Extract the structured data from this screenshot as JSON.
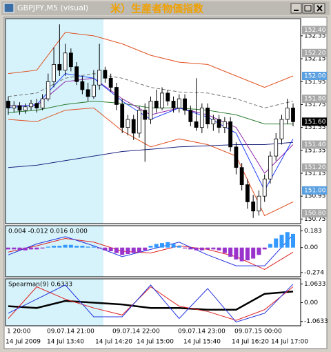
{
  "window": {
    "title": "GBPJPY,M5 (visual)",
    "annotation": "米）生産者物価指数"
  },
  "time_axis": {
    "upper": [
      "1 20:00",
      "09.07.14 21:00",
      "09.07.14 22:00",
      "09.07.14 23:00",
      "09.07.15 00:00"
    ],
    "lower": [
      "14 Jul 2009",
      "14 Jul 13:40",
      "14 Jul 14:20",
      "14 Jul 15:00",
      "14 Jul 15:40",
      "14 Jul 16:20",
      "14 Jul 17:00"
    ]
  },
  "chart_data": [
    {
      "type": "candlestick",
      "ylim": [
        150.71,
        152.5
      ],
      "yticks": [
        152.35,
        152.15,
        151.95,
        151.75,
        151.55,
        151.35,
        151.15,
        150.95,
        150.75
      ],
      "levels": [
        {
          "value": 152.4,
          "label": "152.40",
          "color": "#a8a8a8"
        },
        {
          "value": 152.2,
          "label": "152.20",
          "color": "#a8a8a8"
        },
        {
          "value": 152.0,
          "label": "152.00",
          "color": "#5aa0e0"
        },
        {
          "value": 151.8,
          "label": "151.80",
          "color": "#a8a8a8"
        },
        {
          "value": 151.6,
          "label": "151.60",
          "color": "#000000"
        },
        {
          "value": 151.4,
          "label": "151.40",
          "color": "#a8a8a8"
        },
        {
          "value": 151.2,
          "label": "151.20",
          "color": "#a8a8a8"
        },
        {
          "value": 151.0,
          "label": "151.00",
          "color": "#5aa0e0"
        },
        {
          "value": 150.8,
          "label": "150.80",
          "color": "#a8a8a8"
        }
      ],
      "candles": [
        [
          151.78,
          151.82,
          151.66,
          151.72
        ],
        [
          151.72,
          151.78,
          151.68,
          151.74
        ],
        [
          151.74,
          151.77,
          151.66,
          151.7
        ],
        [
          151.7,
          151.76,
          151.67,
          151.73
        ],
        [
          151.73,
          151.79,
          151.7,
          151.76
        ],
        [
          151.76,
          151.8,
          151.68,
          151.72
        ],
        [
          151.72,
          151.84,
          151.7,
          151.8
        ],
        [
          151.8,
          152.02,
          151.78,
          151.95
        ],
        [
          151.95,
          152.25,
          151.9,
          152.1
        ],
        [
          152.1,
          152.45,
          152.0,
          152.05
        ],
        [
          152.05,
          152.28,
          152.0,
          152.2
        ],
        [
          152.2,
          152.24,
          152.04,
          152.08
        ],
        [
          152.08,
          152.12,
          151.92,
          151.95
        ],
        [
          151.95,
          152.0,
          151.84,
          151.88
        ],
        [
          151.88,
          151.94,
          151.78,
          151.82
        ],
        [
          151.82,
          152.05,
          151.8,
          151.92
        ],
        [
          151.92,
          152.28,
          151.88,
          152.05
        ],
        [
          152.05,
          152.08,
          151.94,
          151.98
        ],
        [
          151.98,
          152.02,
          151.86,
          151.9
        ],
        [
          151.9,
          151.94,
          151.7,
          151.75
        ],
        [
          151.75,
          151.8,
          151.5,
          151.55
        ],
        [
          151.55,
          151.66,
          151.48,
          151.62
        ],
        [
          151.62,
          151.66,
          151.44,
          151.5
        ],
        [
          151.5,
          151.74,
          151.46,
          151.7
        ],
        [
          151.7,
          151.76,
          151.25,
          151.62
        ],
        [
          151.62,
          151.82,
          151.58,
          151.78
        ],
        [
          151.78,
          151.88,
          151.68,
          151.72
        ],
        [
          151.72,
          151.9,
          151.7,
          151.85
        ],
        [
          151.85,
          151.88,
          151.74,
          151.78
        ],
        [
          151.78,
          151.82,
          151.68,
          151.72
        ],
        [
          151.72,
          151.84,
          151.68,
          151.8
        ],
        [
          151.8,
          151.84,
          151.66,
          151.7
        ],
        [
          151.7,
          151.74,
          151.56,
          151.6
        ],
        [
          151.6,
          151.98,
          151.52,
          151.55
        ],
        [
          151.55,
          151.76,
          151.5,
          151.72
        ],
        [
          151.72,
          151.76,
          151.54,
          151.58
        ],
        [
          151.58,
          151.66,
          151.52,
          151.62
        ],
        [
          151.62,
          151.66,
          151.5,
          151.55
        ],
        [
          151.55,
          151.64,
          151.5,
          151.6
        ],
        [
          151.6,
          151.64,
          151.34,
          151.38
        ],
        [
          151.38,
          151.42,
          151.14,
          151.2
        ],
        [
          151.2,
          151.24,
          151.0,
          151.05
        ],
        [
          151.05,
          151.1,
          150.84,
          150.9
        ],
        [
          150.9,
          150.96,
          150.76,
          150.82
        ],
        [
          150.82,
          151.0,
          150.78,
          150.95
        ],
        [
          150.95,
          151.14,
          150.9,
          151.1
        ],
        [
          151.1,
          151.34,
          151.06,
          151.3
        ],
        [
          151.3,
          151.5,
          151.26,
          151.45
        ],
        [
          151.45,
          151.66,
          151.4,
          151.62
        ],
        [
          151.62,
          151.8,
          151.58,
          151.72
        ],
        [
          151.72,
          151.76,
          151.56,
          151.6
        ]
      ],
      "line_x": [
        0,
        5,
        10,
        15,
        20,
        25,
        30,
        35,
        40,
        45,
        50
      ],
      "lines": [
        {
          "color": "#e05020",
          "values": [
            152.02,
            152.05,
            152.38,
            152.35,
            152.28,
            152.18,
            152.12,
            152.1,
            152.0,
            151.9,
            152.0
          ]
        },
        {
          "color": "#e05020",
          "values": [
            151.62,
            151.6,
            151.7,
            151.72,
            151.52,
            151.38,
            151.45,
            151.4,
            151.3,
            150.78,
            150.9
          ]
        },
        {
          "color": "#1a237e",
          "values": [
            151.2,
            151.22,
            151.26,
            151.3,
            151.34,
            151.36,
            151.38,
            151.39,
            151.4,
            151.4,
            151.42
          ]
        },
        {
          "color": "#2e7d32",
          "values": [
            151.68,
            151.7,
            151.75,
            151.78,
            151.76,
            151.72,
            151.72,
            151.7,
            151.66,
            151.58,
            151.58
          ]
        },
        {
          "color": "#707070",
          "dashed": true,
          "values": [
            151.82,
            151.85,
            151.98,
            152.02,
            151.98,
            151.9,
            151.86,
            151.85,
            151.8,
            151.72,
            151.78
          ]
        },
        {
          "color": "#8e24aa",
          "values": [
            151.74,
            151.74,
            151.95,
            151.98,
            151.8,
            151.66,
            151.72,
            151.66,
            151.55,
            151.15,
            151.4
          ]
        },
        {
          "color": "#1e40ff",
          "values": [
            151.72,
            151.75,
            152.02,
            151.98,
            151.78,
            151.62,
            151.72,
            151.64,
            151.5,
            151.0,
            151.45
          ]
        }
      ]
    },
    {
      "type": "histogram-panel",
      "label": "0.004 -0.012 0.016 0.000",
      "ylim": [
        -0.32,
        0.24
      ],
      "yticks": [
        0.183,
        {
          "value": 0,
          "label": "0.00"
        },
        -0.274
      ],
      "positive_color": "#3399ff",
      "negative_color": "#9933cc",
      "histogram": [
        -0.02,
        -0.02,
        -0.03,
        -0.03,
        -0.02,
        -0.02,
        -0.01,
        0.01,
        0.02,
        0.02,
        0.03,
        0.03,
        0.02,
        0.02,
        0.01,
        0.01,
        -0.01,
        -0.03,
        -0.04,
        -0.06,
        -0.08,
        -0.07,
        -0.06,
        -0.05,
        -0.03,
        0.02,
        0.04,
        0.05,
        0.06,
        0.04,
        0.02,
        -0.01,
        -0.02,
        -0.03,
        -0.03,
        -0.02,
        -0.02,
        -0.03,
        -0.06,
        -0.1,
        -0.13,
        -0.15,
        -0.14,
        -0.12,
        -0.08,
        -0.02,
        0.04,
        0.1,
        0.14,
        0.17,
        0.15
      ],
      "line_x": [
        0,
        5,
        10,
        15,
        20,
        25,
        30,
        35,
        40,
        45,
        50
      ],
      "lines": [
        {
          "color": "#e02020",
          "values": [
            -0.05,
            0.02,
            0.1,
            0.06,
            -0.04,
            -0.06,
            0.02,
            -0.02,
            -0.1,
            -0.24,
            -0.05
          ]
        },
        {
          "color": "#2030e0",
          "values": [
            -0.08,
            0.04,
            0.12,
            0.02,
            -0.1,
            -0.02,
            0.06,
            -0.08,
            -0.2,
            -0.2,
            0.14
          ]
        }
      ]
    },
    {
      "type": "line-panel",
      "label": "Spearman(9) 0.6333",
      "ylim": [
        -1.31,
        1.35
      ],
      "yticks": [
        1.0633,
        {
          "value": 0,
          "label": "0.00"
        },
        -1.0633
      ],
      "line_x": [
        0,
        5,
        10,
        15,
        20,
        25,
        30,
        35,
        40,
        45,
        50
      ],
      "lines": [
        {
          "color": "#000000",
          "width": 2.5,
          "values": [
            -0.2,
            -0.3,
            0.1,
            0.0,
            -0.1,
            -0.3,
            -0.3,
            -0.4,
            -0.4,
            0.5,
            0.63
          ]
        },
        {
          "color": "#e02020",
          "values": [
            -0.9,
            0.9,
            0.2,
            -0.3,
            -0.7,
            0.9,
            -0.2,
            -0.5,
            -1.0,
            -0.4,
            0.9
          ]
        },
        {
          "color": "#2030e0",
          "values": [
            -0.6,
            0.2,
            1.0,
            -0.8,
            -0.8,
            1.0,
            -0.9,
            0.8,
            -1.1,
            -0.6,
            1.05
          ]
        }
      ]
    }
  ]
}
